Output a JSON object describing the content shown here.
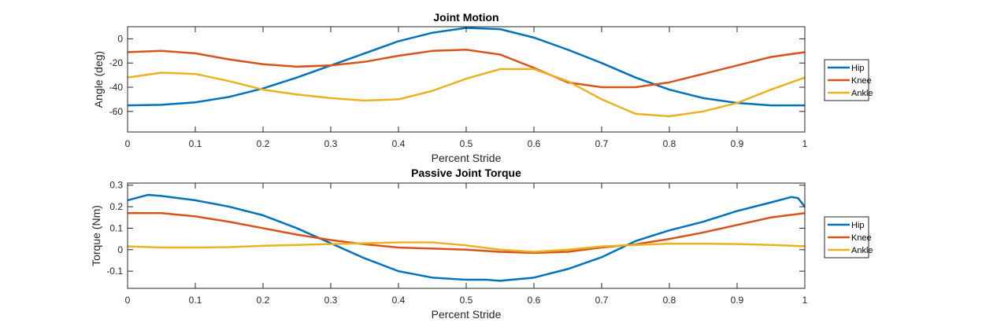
{
  "chart_data": [
    {
      "type": "line",
      "title": "Joint Motion",
      "xlabel": "Percent Stride",
      "ylabel": "Angle (deg)",
      "xlim": [
        0,
        1
      ],
      "ylim": [
        -77,
        10
      ],
      "xticks": [
        0,
        0.1,
        0.2,
        0.3,
        0.4,
        0.5,
        0.6,
        0.7,
        0.8,
        0.9,
        1
      ],
      "xtick_labels": [
        "0",
        "0.1",
        "0.2",
        "0.3",
        "0.4",
        "0.5",
        "0.6",
        "0.7",
        "0.8",
        "0.9",
        "1"
      ],
      "yticks": [
        -60,
        -40,
        -20,
        0
      ],
      "ytick_labels": [
        "-60",
        "-40",
        "-20",
        "0"
      ],
      "grid": false,
      "legend_position": "outside-right",
      "series": [
        {
          "name": "Hip",
          "color": "#0072BD",
          "x": [
            0,
            0.05,
            0.1,
            0.15,
            0.2,
            0.25,
            0.3,
            0.35,
            0.4,
            0.45,
            0.5,
            0.55,
            0.6,
            0.65,
            0.7,
            0.75,
            0.8,
            0.85,
            0.9,
            0.95,
            1
          ],
          "y": [
            -55,
            -54.5,
            -52.5,
            -48,
            -41,
            -32,
            -22,
            -12,
            -2,
            5,
            9,
            8,
            1,
            -9,
            -20,
            -32,
            -42,
            -49,
            -53,
            -55,
            -55
          ]
        },
        {
          "name": "Knee",
          "color": "#D95319",
          "x": [
            0,
            0.05,
            0.1,
            0.15,
            0.2,
            0.25,
            0.3,
            0.35,
            0.4,
            0.45,
            0.5,
            0.55,
            0.6,
            0.65,
            0.7,
            0.75,
            0.8,
            0.85,
            0.9,
            0.95,
            1
          ],
          "y": [
            -11,
            -10,
            -12,
            -17,
            -21,
            -23,
            -22,
            -19,
            -14,
            -10,
            -9,
            -13,
            -24,
            -36,
            -40,
            -40,
            -36,
            -29,
            -22,
            -15,
            -11
          ]
        },
        {
          "name": "Ankle",
          "color": "#EDB120",
          "x": [
            0,
            0.05,
            0.1,
            0.15,
            0.2,
            0.25,
            0.3,
            0.35,
            0.4,
            0.45,
            0.5,
            0.55,
            0.6,
            0.65,
            0.7,
            0.75,
            0.8,
            0.85,
            0.9,
            0.95,
            1
          ],
          "y": [
            -32,
            -28,
            -29,
            -35,
            -42,
            -46,
            -49,
            -51,
            -50,
            -43,
            -33,
            -25,
            -25,
            -35,
            -50,
            -62,
            -64,
            -60,
            -53,
            -42,
            -32
          ]
        }
      ]
    },
    {
      "type": "line",
      "title": "Passive Joint Torque",
      "xlabel": "Percent Stride",
      "ylabel": "Torque (Nm)",
      "xlim": [
        0,
        1
      ],
      "ylim": [
        -0.18,
        0.31
      ],
      "xticks": [
        0,
        0.1,
        0.2,
        0.3,
        0.4,
        0.5,
        0.6,
        0.7,
        0.8,
        0.9,
        1
      ],
      "xtick_labels": [
        "0",
        "0.1",
        "0.2",
        "0.3",
        "0.4",
        "0.5",
        "0.6",
        "0.7",
        "0.8",
        "0.9",
        "1"
      ],
      "yticks": [
        -0.1,
        0,
        0.1,
        0.2,
        0.3
      ],
      "ytick_labels": [
        "-0.1",
        "0",
        "0.1",
        "0.2",
        "0.3"
      ],
      "grid": false,
      "legend_position": "outside-right",
      "series": [
        {
          "name": "Hip",
          "color": "#0072BD",
          "x": [
            0,
            0.03,
            0.05,
            0.1,
            0.15,
            0.2,
            0.25,
            0.3,
            0.35,
            0.4,
            0.45,
            0.5,
            0.53,
            0.55,
            0.6,
            0.65,
            0.7,
            0.75,
            0.77,
            0.8,
            0.85,
            0.9,
            0.95,
            0.98,
            0.99,
            1
          ],
          "y": [
            0.23,
            0.255,
            0.25,
            0.23,
            0.2,
            0.16,
            0.1,
            0.03,
            -0.04,
            -0.1,
            -0.13,
            -0.14,
            -0.14,
            -0.145,
            -0.13,
            -0.09,
            -0.035,
            0.04,
            0.06,
            0.09,
            0.13,
            0.18,
            0.22,
            0.245,
            0.24,
            0.2
          ]
        },
        {
          "name": "Knee",
          "color": "#D95319",
          "x": [
            0,
            0.05,
            0.1,
            0.15,
            0.2,
            0.25,
            0.3,
            0.35,
            0.4,
            0.45,
            0.5,
            0.55,
            0.6,
            0.65,
            0.7,
            0.75,
            0.8,
            0.85,
            0.9,
            0.95,
            1
          ],
          "y": [
            0.17,
            0.17,
            0.155,
            0.13,
            0.1,
            0.07,
            0.045,
            0.025,
            0.01,
            0.005,
            0,
            -0.01,
            -0.015,
            -0.01,
            0.01,
            0.025,
            0.05,
            0.08,
            0.115,
            0.15,
            0.17
          ]
        },
        {
          "name": "Ankle",
          "color": "#EDB120",
          "x": [
            0,
            0.05,
            0.1,
            0.15,
            0.2,
            0.25,
            0.3,
            0.35,
            0.4,
            0.45,
            0.5,
            0.55,
            0.6,
            0.65,
            0.7,
            0.75,
            0.8,
            0.85,
            0.9,
            0.95,
            1
          ],
          "y": [
            0.015,
            0.01,
            0.01,
            0.012,
            0.018,
            0.022,
            0.026,
            0.03,
            0.034,
            0.034,
            0.02,
            0,
            -0.01,
            0,
            0.015,
            0.022,
            0.028,
            0.028,
            0.026,
            0.022,
            0.016
          ]
        }
      ]
    }
  ]
}
